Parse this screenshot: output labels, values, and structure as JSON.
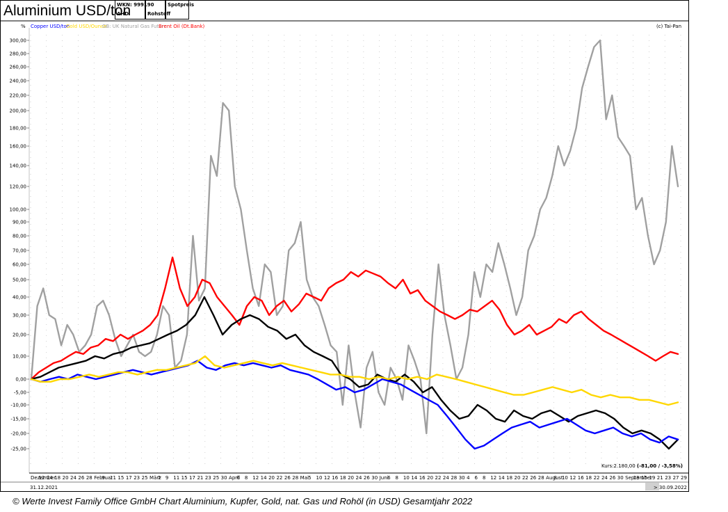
{
  "header": {
    "title": "Aluminium USD/ton",
    "wkn": "WKN: 999190",
    "code": "AHD",
    "category": "Rohstoff",
    "price_type": "Spotpreis"
  },
  "caption": "© Werte Invest Family Office GmbH Chart Aluminium, Kupfer, Gold, nat. Gas und Rohöl (in USD) Gesamtjahr 2022",
  "chart_data": {
    "type": "line",
    "y_unit_label": "%",
    "copyright": "(c) Tai-Pan",
    "kurs_label": "Kurs:2.180,00",
    "kurs_change": "(-81,00 / -3,58%)",
    "date_start": "31.12.2021",
    "date_end": "> 30.09.2022",
    "y_ticks": [
      "300,00",
      "280,00",
      "260,00",
      "240,00",
      "220,00",
      "200,00",
      "180,00",
      "160,00",
      "140,00",
      "120,00",
      "100,00",
      "90,00",
      "80,00",
      "70,00",
      "60,00",
      "50,00",
      "40,00",
      "30,00",
      "20,00",
      "10,00",
      "0,00",
      "-5,00",
      "-10,00",
      "-15,00",
      "-20,00",
      "-25,00"
    ],
    "x_axis_labels": [
      "Dezember",
      "12",
      "14",
      "18",
      "20",
      "24",
      "26",
      "28",
      "Februar",
      "9",
      "11",
      "15",
      "17",
      "23",
      "25",
      "März",
      "7",
      "9",
      "11",
      "15",
      "17",
      "21",
      "23",
      "25",
      "30",
      "April",
      "6",
      "8",
      "12",
      "14",
      "20",
      "22",
      "26",
      "28",
      "Mai",
      "5",
      "10",
      "12",
      "16",
      "18",
      "20",
      "24",
      "26",
      "30",
      "Juni",
      "6",
      "8",
      "10",
      "14",
      "16",
      "20",
      "22",
      "24",
      "28",
      "30",
      "4",
      "6",
      "8",
      "12",
      "14",
      "18",
      "20",
      "22",
      "26",
      "28",
      "August",
      "8",
      "10",
      "12",
      "16",
      "18",
      "22",
      "24",
      "26",
      "30",
      "September",
      "13",
      "15",
      "19",
      "21",
      "23",
      "27",
      "29"
    ],
    "legend": [
      {
        "name": "Copper USD/ton",
        "color": "#0000ff"
      },
      {
        "name": "Gold USD/Ounce",
        "color": "#ffd700"
      },
      {
        "name": "GB: UK Natural Gas Future",
        "color": "#a0a0a0"
      },
      {
        "name": "Brent Oil (Dt.Bank)",
        "color": "#ff0000"
      }
    ],
    "series": [
      {
        "name": "GB: UK Natural Gas Future",
        "color": "#a0a0a0",
        "values": [
          0,
          35,
          45,
          30,
          28,
          15,
          25,
          20,
          12,
          15,
          20,
          35,
          38,
          30,
          18,
          10,
          15,
          20,
          12,
          10,
          12,
          20,
          35,
          30,
          5,
          8,
          20,
          80,
          38,
          45,
          150,
          130,
          210,
          200,
          120,
          100,
          70,
          45,
          35,
          60,
          55,
          30,
          35,
          70,
          75,
          90,
          50,
          40,
          35,
          25,
          15,
          12,
          -10,
          15,
          -5,
          -18,
          5,
          12,
          -5,
          -10,
          5,
          0,
          -8,
          15,
          8,
          0,
          -20,
          20,
          60,
          30,
          15,
          0,
          5,
          20,
          55,
          40,
          60,
          55,
          75,
          60,
          45,
          30,
          40,
          70,
          80,
          100,
          110,
          130,
          160,
          140,
          155,
          180,
          230,
          260,
          290,
          300,
          190,
          220,
          170,
          160,
          150,
          100,
          110,
          80,
          60,
          70,
          90,
          160,
          120
        ],
        "recon_values": [
          0,
          40,
          50,
          30,
          28,
          14,
          27,
          18,
          14,
          16,
          22,
          38,
          40,
          34,
          16,
          12,
          16,
          22,
          13,
          11,
          13,
          21,
          80,
          40,
          6,
          10,
          22,
          70,
          38,
          48,
          150,
          125,
          210,
          205,
          120,
          100,
          75,
          48,
          38,
          62,
          56,
          34,
          37,
          72,
          80,
          90,
          52,
          42,
          36,
          28,
          16,
          13,
          -10,
          16,
          -6,
          -18,
          6,
          13,
          -6,
          -10,
          6,
          1,
          -8,
          16,
          9,
          1,
          -20,
          22,
          62,
          32,
          17,
          1,
          6,
          22,
          56,
          42,
          62,
          57,
          78,
          62,
          46,
          32,
          42,
          72,
          82,
          102,
          112,
          132,
          162,
          142,
          158,
          182,
          232,
          262,
          292,
          300,
          192,
          222,
          172,
          162,
          152,
          102,
          112,
          82,
          62,
          72,
          92,
          162,
          118
        ]
      },
      {
        "name": "Brent Oil (Dt.Bank)",
        "color": "#ff0000",
        "values": [
          0,
          3,
          5,
          7,
          8,
          10,
          12,
          11,
          14,
          15,
          18,
          17,
          20,
          18,
          20,
          22,
          25,
          30,
          45,
          65,
          45,
          35,
          40,
          50,
          48,
          40,
          35,
          30,
          25,
          35,
          40,
          38,
          30,
          35,
          38,
          32,
          36,
          42,
          40,
          38,
          45,
          48,
          50,
          55,
          52,
          56,
          54,
          52,
          48,
          45,
          50,
          42,
          44,
          38,
          35,
          32,
          30,
          28,
          30,
          33,
          32,
          35,
          38,
          33,
          25,
          20,
          22,
          25,
          20,
          22,
          24,
          28,
          26,
          30,
          32,
          28,
          25,
          22,
          20,
          18,
          16,
          14,
          12,
          10,
          8,
          10,
          12,
          11
        ],
        "recon_values": [
          0,
          3,
          5,
          7,
          8,
          10,
          12,
          11,
          14,
          15,
          18,
          17,
          20,
          18,
          20,
          22,
          25,
          30,
          45,
          65,
          45,
          35,
          40,
          50,
          48,
          40,
          35,
          30,
          25,
          35,
          40,
          38,
          30,
          35,
          38,
          32,
          36,
          42,
          40,
          38,
          45,
          48,
          50,
          55,
          52,
          56,
          54,
          52,
          48,
          45,
          50,
          42,
          44,
          38,
          35,
          32,
          30,
          28,
          30,
          33,
          32,
          35,
          38,
          33,
          25,
          20,
          22,
          25,
          20,
          22,
          24,
          28,
          26,
          30,
          32,
          28,
          25,
          22,
          20,
          18,
          16,
          14,
          12,
          10,
          8,
          10,
          12,
          11
        ]
      },
      {
        "name": "Aluminium USD/ton",
        "color": "#000000",
        "values": [
          0,
          1,
          3,
          5,
          6,
          7,
          8,
          10,
          9,
          11,
          12,
          14,
          15,
          16,
          18,
          20,
          22,
          25,
          30,
          40,
          30,
          20,
          25,
          28,
          30,
          28,
          24,
          22,
          18,
          20,
          15,
          12,
          10,
          8,
          2,
          0,
          -3,
          -2,
          2,
          0,
          -1,
          2,
          -1,
          -5,
          -3,
          -8,
          -12,
          -15,
          -14,
          -10,
          -12,
          -15,
          -16,
          -12,
          -14,
          -15,
          -13,
          -12,
          -14,
          -16,
          -14,
          -13,
          -12,
          -13,
          -15,
          -18,
          -20,
          -19,
          -20,
          -22,
          -25,
          -22
        ],
        "recon_values": [
          0,
          1,
          3,
          5,
          6,
          7,
          8,
          10,
          9,
          11,
          12,
          14,
          15,
          16,
          18,
          20,
          22,
          25,
          30,
          40,
          30,
          20,
          25,
          28,
          30,
          28,
          24,
          22,
          18,
          20,
          15,
          12,
          10,
          8,
          2,
          0,
          -3,
          -2,
          2,
          0,
          -1,
          2,
          -1,
          -5,
          -3,
          -8,
          -12,
          -15,
          -14,
          -10,
          -12,
          -15,
          -16,
          -12,
          -14,
          -15,
          -13,
          -12,
          -14,
          -16,
          -14,
          -13,
          -12,
          -13,
          -15,
          -18,
          -20,
          -19,
          -20,
          -22,
          -25,
          -22
        ]
      },
      {
        "name": "Copper USD/ton",
        "color": "#0000ff",
        "values": [
          0,
          -1,
          0,
          1,
          0,
          2,
          1,
          0,
          1,
          2,
          3,
          4,
          3,
          2,
          3,
          4,
          5,
          6,
          8,
          5,
          4,
          6,
          7,
          6,
          7,
          6,
          5,
          6,
          4,
          3,
          2,
          0,
          -2,
          -4,
          -3,
          -5,
          -4,
          -2,
          0,
          -1,
          -2,
          -4,
          -6,
          -8,
          -10,
          -14,
          -18,
          -22,
          -26,
          -24,
          -22,
          -20,
          -18,
          -17,
          -16,
          -18,
          -17,
          -16,
          -15,
          -17,
          -19,
          -20,
          -19,
          -18,
          -20,
          -21,
          -20,
          -22,
          -23,
          -21,
          -22
        ],
        "recon_values": [
          0,
          -1,
          0,
          1,
          0,
          2,
          1,
          0,
          1,
          2,
          3,
          4,
          3,
          2,
          3,
          4,
          5,
          6,
          8,
          5,
          4,
          6,
          7,
          6,
          7,
          6,
          5,
          6,
          4,
          3,
          2,
          0,
          -2,
          -4,
          -3,
          -5,
          -4,
          -2,
          0,
          -1,
          -2,
          -4,
          -6,
          -8,
          -10,
          -14,
          -18,
          -22,
          -26,
          -24,
          -22,
          -20,
          -18,
          -17,
          -16,
          -18,
          -17,
          -16,
          -15,
          -17,
          -19,
          -20,
          -19,
          -18,
          -20,
          -21,
          -20,
          -22,
          -23,
          -21,
          -22
        ]
      },
      {
        "name": "Gold USD/Ounce",
        "color": "#ffd700",
        "values": [
          0,
          -1,
          -1,
          0,
          0,
          1,
          2,
          1,
          2,
          3,
          3,
          2,
          3,
          4,
          4,
          5,
          6,
          7,
          10,
          6,
          5,
          6,
          7,
          8,
          7,
          6,
          7,
          6,
          5,
          4,
          3,
          2,
          2,
          1,
          1,
          0,
          1,
          0,
          1,
          0,
          1,
          0,
          2,
          1,
          0,
          -1,
          -2,
          -3,
          -4,
          -5,
          -6,
          -6,
          -5,
          -4,
          -3,
          -4,
          -5,
          -4,
          -6,
          -7,
          -6,
          -7,
          -7,
          -8,
          -8,
          -9,
          -10,
          -9
        ],
        "recon_values": [
          0,
          -1,
          -1,
          0,
          0,
          1,
          2,
          1,
          2,
          3,
          3,
          2,
          3,
          4,
          4,
          5,
          6,
          7,
          10,
          6,
          5,
          6,
          7,
          8,
          7,
          6,
          7,
          6,
          5,
          4,
          3,
          2,
          2,
          1,
          1,
          0,
          1,
          0,
          1,
          0,
          1,
          0,
          2,
          1,
          0,
          -1,
          -2,
          -3,
          -4,
          -5,
          -6,
          -6,
          -5,
          -4,
          -3,
          -4,
          -5,
          -4,
          -6,
          -7,
          -6,
          -7,
          -7,
          -8,
          -8,
          -9,
          -10,
          -9
        ]
      }
    ]
  }
}
